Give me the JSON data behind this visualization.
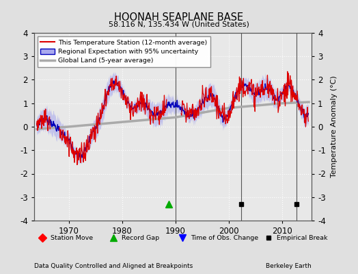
{
  "title": "HOONAH SEAPLANE BASE",
  "subtitle": "58.116 N, 135.434 W (United States)",
  "ylabel": "Temperature Anomaly (°C)",
  "xlabel_left": "Data Quality Controlled and Aligned at Breakpoints",
  "xlabel_right": "Berkeley Earth",
  "ylim": [
    -4,
    4
  ],
  "xlim": [
    1963.5,
    2015.5
  ],
  "xticks": [
    1970,
    1980,
    1990,
    2000,
    2010
  ],
  "yticks": [
    -4,
    -3,
    -2,
    -1,
    0,
    1,
    2,
    3,
    4
  ],
  "bg_color": "#e0e0e0",
  "plot_bg_color": "#e8e8e8",
  "grid_color": "#ffffff",
  "station_color": "#dd0000",
  "regional_line_color": "#0000bb",
  "regional_fill_color": "#aaaaee",
  "global_color": "#aaaaaa",
  "record_gap_x": 1988.8,
  "record_gap_y": -3.3,
  "empirical_break_x1": 2002.3,
  "empirical_break_x2": 2012.7,
  "empirical_break_y": -3.3
}
